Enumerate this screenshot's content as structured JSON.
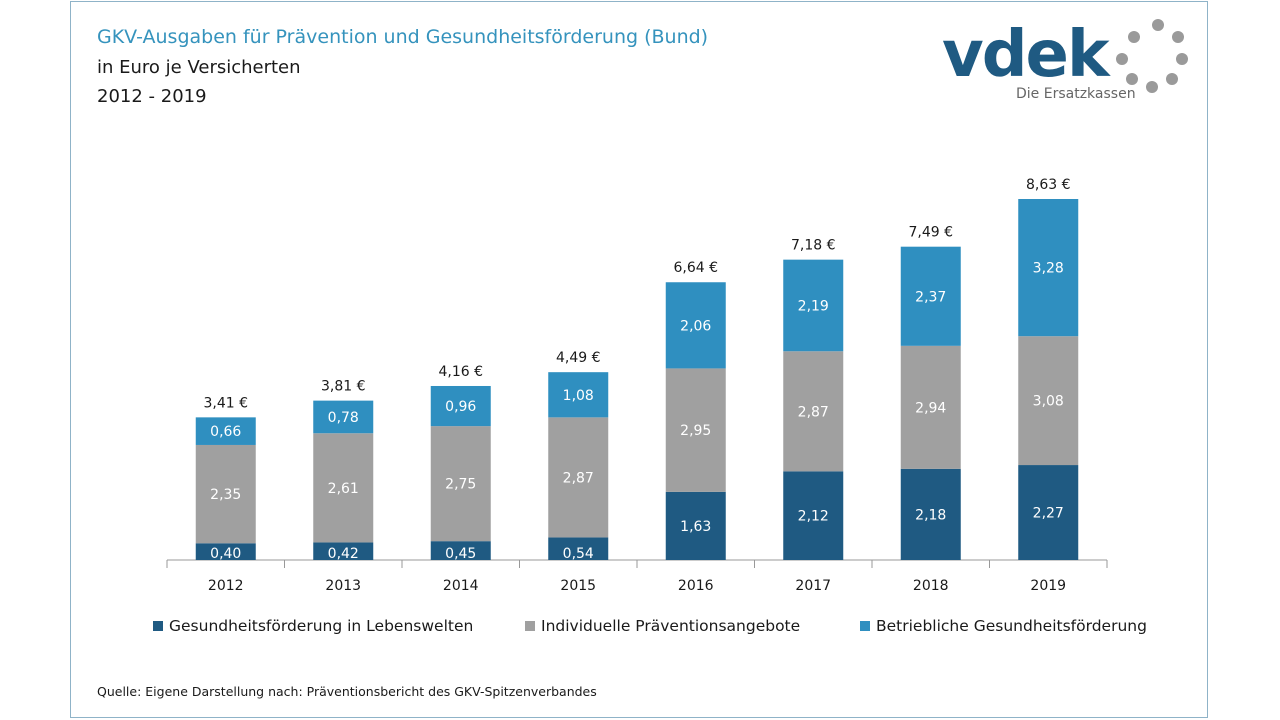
{
  "header": {
    "title": "GKV-Ausgaben für Prävention und Gesundheitsförderung (Bund)",
    "subtitle": "in Euro je Versicherten",
    "period": "2012 - 2019"
  },
  "logo": {
    "wordmark": "vdek",
    "tagline": "Die Ersatzkassen"
  },
  "colors": {
    "lebenswelten": "#1f5a82",
    "individuell": "#a0a0a0",
    "betrieblich": "#2f8fc0",
    "title": "#3593bd"
  },
  "chart_data": {
    "type": "bar",
    "stacked": true,
    "categories": [
      "2012",
      "2013",
      "2014",
      "2015",
      "2016",
      "2017",
      "2018",
      "2019"
    ],
    "series": [
      {
        "name": "Gesundheitsförderung in Lebenswelten",
        "values": [
          0.4,
          0.42,
          0.45,
          0.54,
          1.63,
          2.12,
          2.18,
          2.27
        ],
        "labels": [
          "0,40",
          "0,42",
          "0,45",
          "0,54",
          "1,63",
          "2,12",
          "2,18",
          "2,27"
        ]
      },
      {
        "name": "Individuelle Präventionsangebote",
        "values": [
          2.35,
          2.61,
          2.75,
          2.87,
          2.95,
          2.87,
          2.94,
          3.08
        ],
        "labels": [
          "2,35",
          "2,61",
          "2,75",
          "2,87",
          "2,95",
          "2,87",
          "2,94",
          "3,08"
        ]
      },
      {
        "name": "Betriebliche Gesundheitsförderung",
        "values": [
          0.66,
          0.78,
          0.96,
          1.08,
          2.06,
          2.19,
          2.37,
          3.28
        ],
        "labels": [
          "0,66",
          "0,78",
          "0,96",
          "1,08",
          "2,06",
          "2,19",
          "2,37",
          "3,28"
        ]
      }
    ],
    "totals": [
      3.41,
      3.81,
      4.16,
      4.49,
      6.64,
      7.18,
      7.49,
      8.63
    ],
    "total_labels": [
      "3,41 €",
      "3,81 €",
      "4,16 €",
      "4,49 €",
      "6,64 €",
      "7,18 €",
      "7,49 €",
      "8,63 €"
    ],
    "ylim": [
      0,
      8.63
    ],
    "legend_position": "bottom",
    "grid": false
  },
  "legend": {
    "items": [
      "Gesundheitsförderung in Lebenswelten",
      "Individuelle Präventionsangebote",
      "Betriebliche Gesundheitsförderung"
    ]
  },
  "footer": {
    "source": "Quelle: Eigene Darstellung nach: Präventionsbericht des GKV-Spitzenverbandes"
  }
}
